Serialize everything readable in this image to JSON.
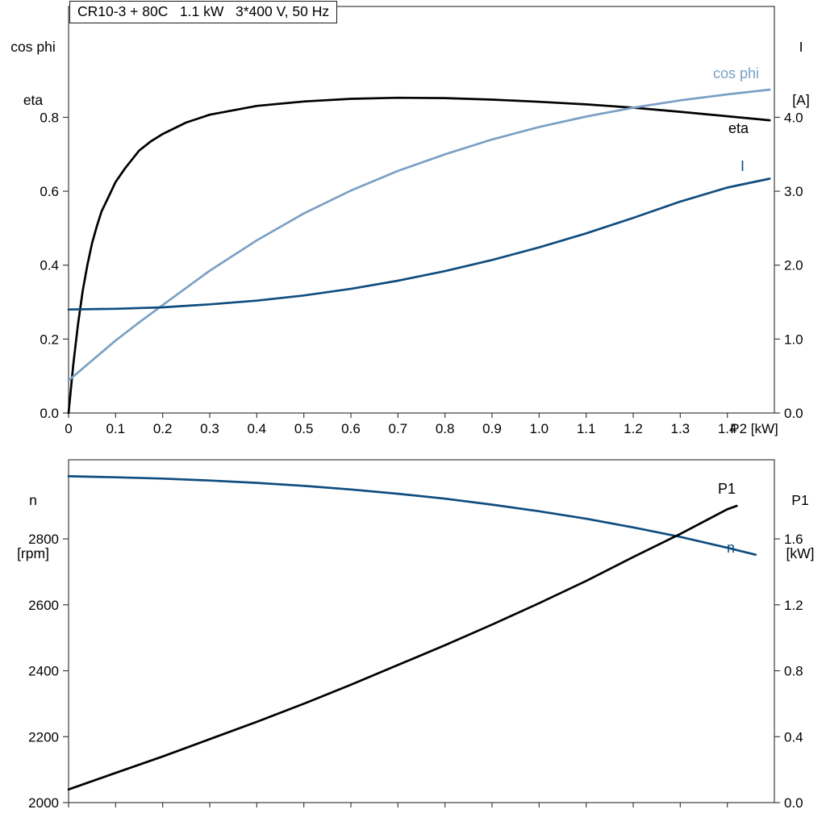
{
  "chart_data": [
    {
      "type": "line",
      "title": "CR10-3 + 80C   1.1 kW   3*400 V, 50 Hz",
      "grid": false,
      "legend_position": "inline-labels",
      "x_axis": {
        "label": "P2 [kW]",
        "min": 0,
        "max": 1.5,
        "tick_values": [
          0,
          0.1,
          0.2,
          0.3,
          0.4,
          0.5,
          0.6,
          0.7,
          0.8,
          0.9,
          1.0,
          1.1,
          1.2,
          1.3,
          1.4
        ],
        "tick_labels": [
          "0",
          "0.1",
          "0.2",
          "0.3",
          "0.4",
          "0.5",
          "0.6",
          "0.7",
          "0.8",
          "0.9",
          "1.0",
          "1.1",
          "1.2",
          "1.3",
          "1.4"
        ]
      },
      "y_left": {
        "label_lines": [
          "cos phi",
          "eta"
        ],
        "min": 0,
        "max": 1.1,
        "tick_values": [
          0,
          0.2,
          0.4,
          0.6,
          0.8
        ],
        "tick_labels": [
          "0.0",
          "0.2",
          "0.4",
          "0.6",
          "0.8"
        ]
      },
      "y_right": {
        "label_lines": [
          "I",
          "[A]"
        ],
        "min": 0,
        "max": 5.5,
        "tick_values": [
          0,
          1,
          2,
          3,
          4
        ],
        "tick_labels": [
          "0.0",
          "1.0",
          "2.0",
          "3.0",
          "4.0"
        ]
      },
      "series": [
        {
          "name": "eta",
          "axis": "left",
          "color": "#000000",
          "x": [
            0,
            0.01,
            0.02,
            0.03,
            0.04,
            0.05,
            0.06,
            0.07,
            0.085,
            0.1,
            0.12,
            0.15,
            0.175,
            0.2,
            0.25,
            0.3,
            0.4,
            0.5,
            0.6,
            0.7,
            0.8,
            0.9,
            1.0,
            1.1,
            1.2,
            1.3,
            1.4,
            1.49
          ],
          "values": [
            0,
            0.13,
            0.24,
            0.33,
            0.4,
            0.46,
            0.505,
            0.545,
            0.585,
            0.625,
            0.662,
            0.71,
            0.735,
            0.755,
            0.786,
            0.807,
            0.831,
            0.843,
            0.85,
            0.853,
            0.852,
            0.848,
            0.842,
            0.835,
            0.826,
            0.815,
            0.803,
            0.792
          ]
        },
        {
          "name": "cos phi",
          "axis": "left",
          "color": "#7AA0C4",
          "x": [
            0,
            0.05,
            0.1,
            0.15,
            0.2,
            0.3,
            0.4,
            0.5,
            0.6,
            0.7,
            0.8,
            0.9,
            1.0,
            1.1,
            1.2,
            1.3,
            1.4,
            1.49
          ],
          "values": [
            0.088,
            0.142,
            0.196,
            0.245,
            0.292,
            0.385,
            0.467,
            0.54,
            0.602,
            0.655,
            0.7,
            0.74,
            0.774,
            0.802,
            0.826,
            0.846,
            0.862,
            0.875
          ]
        },
        {
          "name": "I",
          "axis": "right",
          "color": "#0F4C7F",
          "x": [
            0,
            0.1,
            0.2,
            0.3,
            0.4,
            0.5,
            0.6,
            0.7,
            0.8,
            0.9,
            1.0,
            1.1,
            1.2,
            1.3,
            1.4,
            1.49
          ],
          "values": [
            1.4,
            1.41,
            1.43,
            1.47,
            1.52,
            1.59,
            1.68,
            1.79,
            1.92,
            2.07,
            2.24,
            2.43,
            2.64,
            2.86,
            3.05,
            3.17
          ]
        }
      ]
    },
    {
      "type": "line",
      "title": "",
      "grid": false,
      "legend_position": "inline-labels",
      "x_axis": {
        "label": "",
        "min": 0,
        "max": 1.5,
        "tick_values": [
          0,
          0.1,
          0.2,
          0.3,
          0.4,
          0.5,
          0.6,
          0.7,
          0.8,
          0.9,
          1.0,
          1.1,
          1.2,
          1.3,
          1.4
        ],
        "tick_labels": []
      },
      "y_left": {
        "label_lines": [
          "n",
          "[rpm]"
        ],
        "min": 2000,
        "max": 3040,
        "tick_values": [
          2000,
          2200,
          2400,
          2600,
          2800
        ],
        "tick_labels": [
          "2000",
          "2200",
          "2400",
          "2600",
          "2800"
        ]
      },
      "y_right": {
        "label_lines": [
          "P1",
          "[kW]"
        ],
        "min": 0,
        "max": 2.08,
        "tick_values": [
          0,
          0.4,
          0.8,
          1.2,
          1.6
        ],
        "tick_labels": [
          "0.0",
          "0.4",
          "0.8",
          "1.2",
          "1.6"
        ]
      },
      "series": [
        {
          "name": "n",
          "axis": "left",
          "color": "#0F4C7F",
          "x": [
            0,
            0.1,
            0.2,
            0.3,
            0.4,
            0.5,
            0.6,
            0.7,
            0.8,
            0.9,
            1.0,
            1.1,
            1.2,
            1.3,
            1.4,
            1.46
          ],
          "values": [
            2990,
            2987,
            2983,
            2977,
            2970,
            2961,
            2950,
            2937,
            2922,
            2904,
            2884,
            2861,
            2835,
            2806,
            2773,
            2752
          ]
        },
        {
          "name": "P1",
          "axis": "right",
          "color": "#000000",
          "x": [
            0,
            0.1,
            0.2,
            0.3,
            0.4,
            0.5,
            0.6,
            0.7,
            0.8,
            0.9,
            1.0,
            1.1,
            1.2,
            1.3,
            1.4,
            1.42
          ],
          "values": [
            0.08,
            0.18,
            0.28,
            0.385,
            0.49,
            0.6,
            0.715,
            0.835,
            0.955,
            1.08,
            1.21,
            1.345,
            1.49,
            1.63,
            1.78,
            1.8
          ]
        }
      ]
    }
  ]
}
